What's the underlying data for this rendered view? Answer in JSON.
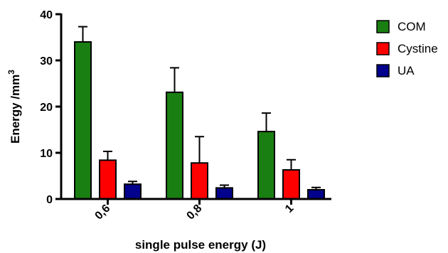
{
  "chart_data": {
    "type": "bar",
    "categories": [
      "0,6",
      "0,8",
      "1"
    ],
    "series": [
      {
        "name": "COM",
        "color": "#1a7f12",
        "values": [
          34.0,
          23.1,
          14.6
        ],
        "errors": [
          3.3,
          5.3,
          4.0
        ]
      },
      {
        "name": "Cystine",
        "color": "#ff0000",
        "values": [
          8.4,
          7.8,
          6.3
        ],
        "errors": [
          1.9,
          5.7,
          2.2
        ]
      },
      {
        "name": "UA",
        "color": "#02028c",
        "values": [
          3.2,
          2.4,
          2.0
        ],
        "errors": [
          0.6,
          0.6,
          0.5
        ]
      }
    ],
    "xlabel": "single pulse energy (J)",
    "ylabel": "Energy /mm",
    "ylabel_superscript": "3",
    "ylim": [
      0,
      40
    ],
    "yticks": [
      "0",
      "10",
      "20",
      "30",
      "40"
    ],
    "legend_position": "top-right",
    "grid": false
  }
}
